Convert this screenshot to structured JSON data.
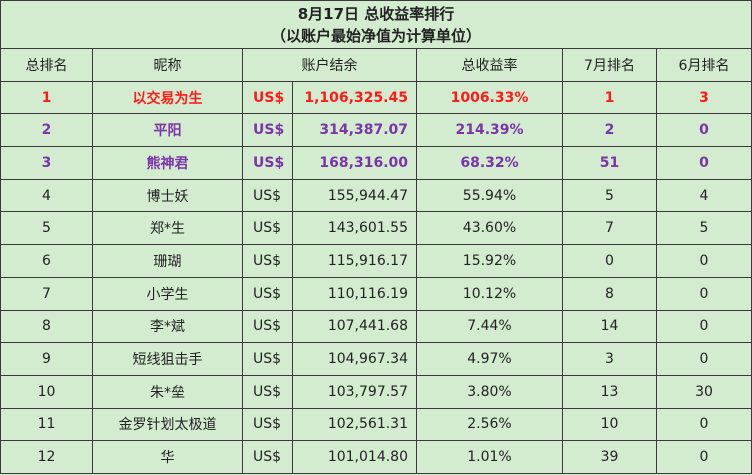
{
  "title": {
    "line1": "8月17日 总收益率排行",
    "line2": "（以账户最始净值为计算单位）"
  },
  "headers": {
    "rank": "总排名",
    "nickname": "昵称",
    "balance": "账户结余",
    "total_return": "总收益率",
    "july_rank": "7月排名",
    "june_rank": "6月排名"
  },
  "rows": [
    {
      "rank": "1",
      "nickname": "以交易为生",
      "currency": "US$",
      "balance": "1,106,325.45",
      "total_return": "1006.33%",
      "july_rank": "1",
      "june_rank": "3"
    },
    {
      "rank": "2",
      "nickname": "平阳",
      "currency": "US$",
      "balance": "314,387.07",
      "total_return": "214.39%",
      "july_rank": "2",
      "june_rank": "0"
    },
    {
      "rank": "3",
      "nickname": "熊神君",
      "currency": "US$",
      "balance": "168,316.00",
      "total_return": "68.32%",
      "july_rank": "51",
      "june_rank": "0"
    },
    {
      "rank": "4",
      "nickname": "博士妖",
      "currency": "US$",
      "balance": "155,944.47",
      "total_return": "55.94%",
      "july_rank": "5",
      "june_rank": "4"
    },
    {
      "rank": "5",
      "nickname": "郑*生",
      "currency": "US$",
      "balance": "143,601.55",
      "total_return": "43.60%",
      "july_rank": "7",
      "june_rank": "5"
    },
    {
      "rank": "6",
      "nickname": "珊瑚",
      "currency": "US$",
      "balance": "115,916.17",
      "total_return": "15.92%",
      "july_rank": "0",
      "june_rank": "0"
    },
    {
      "rank": "7",
      "nickname": "小学生",
      "currency": "US$",
      "balance": "110,116.19",
      "total_return": "10.12%",
      "july_rank": "8",
      "june_rank": "0"
    },
    {
      "rank": "8",
      "nickname": "李*斌",
      "currency": "US$",
      "balance": "107,441.68",
      "total_return": "7.44%",
      "july_rank": "14",
      "june_rank": "0"
    },
    {
      "rank": "9",
      "nickname": "短线狙击手",
      "currency": "US$",
      "balance": "104,967.34",
      "total_return": "4.97%",
      "july_rank": "3",
      "june_rank": "0"
    },
    {
      "rank": "10",
      "nickname": "朱*垒",
      "currency": "US$",
      "balance": "103,797.57",
      "total_return": "3.80%",
      "july_rank": "13",
      "june_rank": "30"
    },
    {
      "rank": "11",
      "nickname": "金罗针划太极道",
      "currency": "US$",
      "balance": "102,561.31",
      "total_return": "2.56%",
      "july_rank": "10",
      "june_rank": "0"
    },
    {
      "rank": "12",
      "nickname": "华",
      "currency": "US$",
      "balance": "101,014.80",
      "total_return": "1.01%",
      "july_rank": "39",
      "june_rank": "0"
    }
  ],
  "colors": {
    "background": "#cfe9cc",
    "rank1_text": "#ff1a1a",
    "rank2_3_text": "#7b35a8",
    "grid": "#3a3a3a"
  }
}
